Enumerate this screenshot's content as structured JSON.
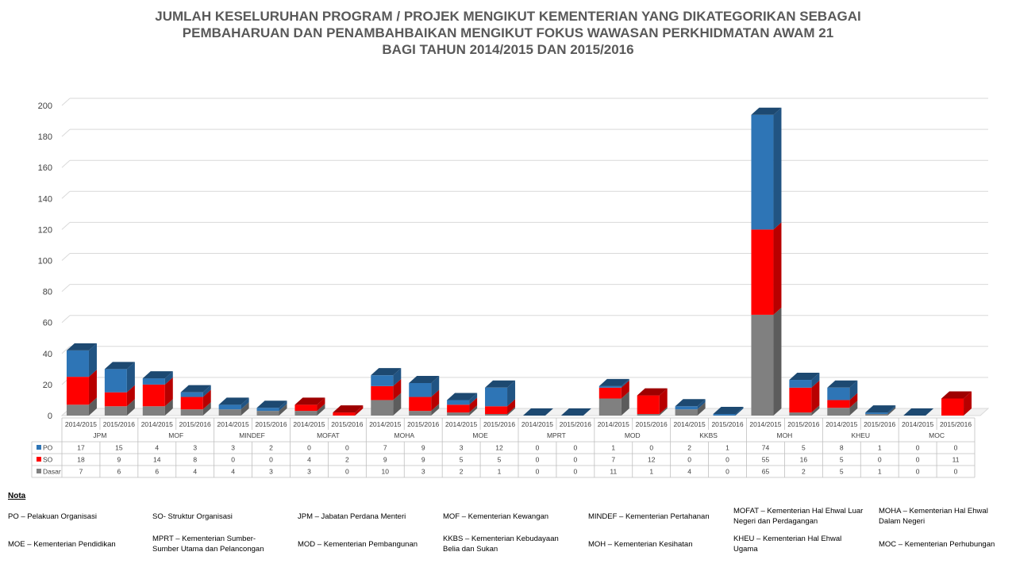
{
  "title_lines": [
    "JUMLAH KESELURUHAN PROGRAM / PROJEK MENGIKUT KEMENTERIAN YANG DIKATEGORIKAN SEBAGAI",
    "PEMBAHARUAN DAN PENAMBAHBAIKAN MENGIKUT FOKUS WAWASAN PERKHIDMATAN AWAM 21",
    "BAGI TAHUN 2014/2015 DAN 2015/2016"
  ],
  "chart_data": {
    "type": "bar",
    "stacked": true,
    "three_d": true,
    "title": "JUMLAH KESELURUHAN PROGRAM / PROJEK MENGIKUT KEMENTERIAN YANG DIKATEGORIKAN SEBAGAI PEMBAHARUAN DAN PENAMBAHBAIKAN MENGIKUT FOKUS WAWASAN PERKHIDMATAN AWAM 21 BAGI TAHUN 2014/2015 DAN 2015/2016",
    "groups": [
      "JPM",
      "MOF",
      "MINDEF",
      "MOFAT",
      "MOHA",
      "MOE",
      "MPRT",
      "MOD",
      "KKBS",
      "MOH",
      "KHEU",
      "MOC"
    ],
    "sub_categories": [
      "2014/2015",
      "2015/2016"
    ],
    "series": [
      {
        "name": "PO",
        "color": "#2E75B6",
        "values": [
          17,
          15,
          4,
          3,
          3,
          2,
          0,
          0,
          7,
          9,
          3,
          12,
          0,
          0,
          1,
          0,
          2,
          1,
          74,
          5,
          8,
          1,
          0,
          0
        ]
      },
      {
        "name": "SO",
        "color": "#FF0000",
        "values": [
          18,
          9,
          14,
          8,
          0,
          0,
          4,
          2,
          9,
          9,
          5,
          5,
          0,
          0,
          7,
          12,
          0,
          0,
          55,
          16,
          5,
          0,
          0,
          11
        ]
      },
      {
        "name": "Dasar",
        "color": "#808080",
        "values": [
          7,
          6,
          6,
          4,
          4,
          3,
          3,
          0,
          10,
          3,
          2,
          1,
          0,
          0,
          11,
          1,
          4,
          0,
          65,
          2,
          5,
          1,
          0,
          0
        ]
      }
    ],
    "stack_order_bottom_to_top": [
      "Dasar",
      "SO",
      "PO"
    ],
    "ylim": [
      0,
      200
    ],
    "yticks": [
      0,
      20,
      40,
      60,
      80,
      100,
      120,
      140,
      160,
      180,
      200
    ],
    "grid": true,
    "legend": "data-table-left"
  },
  "notes": {
    "heading": "Nota",
    "items": [
      {
        "text": "PO – Pelakuan Organisasi"
      },
      {
        "text": "SO- Struktur Organisasi"
      },
      {
        "text": "JPM – Jabatan Perdana Menteri"
      },
      {
        "text": "MOF – Kementerian Kewangan"
      },
      {
        "text": "MINDEF – Kementerian Pertahanan"
      },
      {
        "text": "MOFAT – Kementerian Hal Ehwal Luar Negeri dan Perdagangan"
      },
      {
        "text": "MOHA – Kementerian Hal Ehwal Dalam Negeri"
      },
      {
        "text": "MOE – Kementerian Pendidikan"
      },
      {
        "text": "MPRT – Kementerian Sumber- Sumber Utama dan Pelancongan"
      },
      {
        "text": "MOD – Kementerian Pembangunan"
      },
      {
        "text": "KKBS – Kementerian Kebudayaan Belia dan Sukan"
      },
      {
        "text": "MOH – Kementerian Kesihatan"
      },
      {
        "text": "KHEU – Kementerian Hal Ehwal Ugama"
      },
      {
        "text": "MOC – Kementerian Perhubungan"
      }
    ]
  }
}
